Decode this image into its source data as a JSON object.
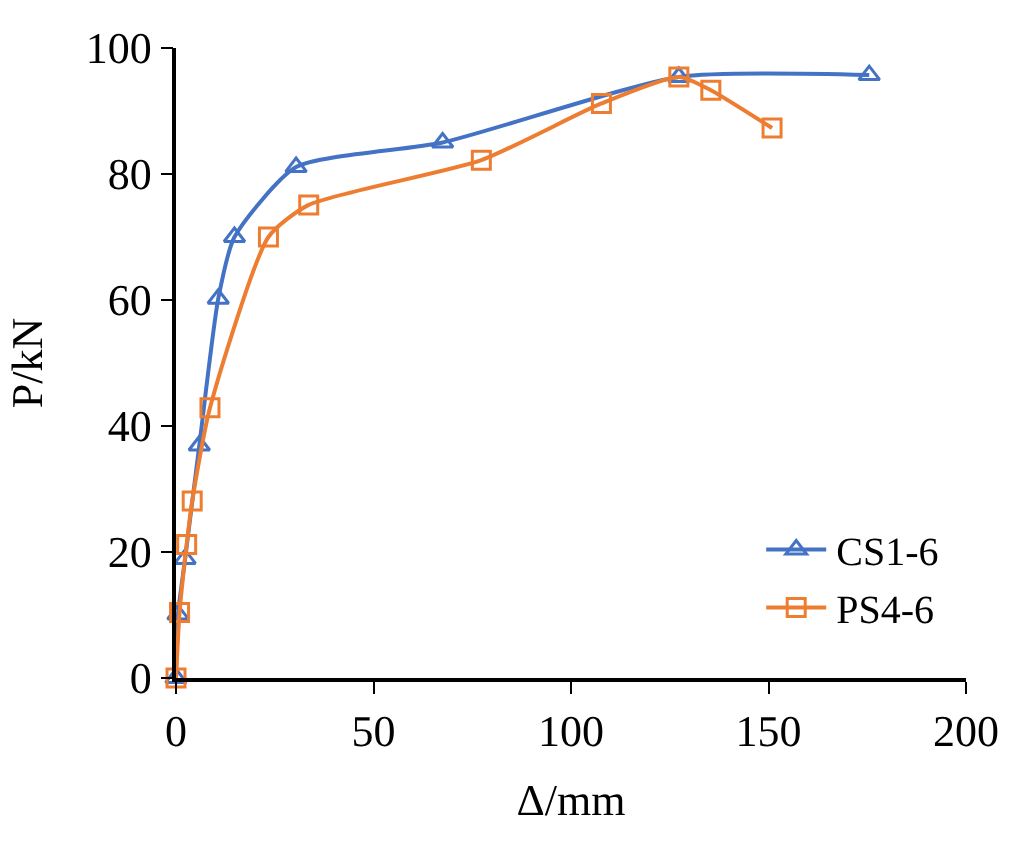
{
  "chart_data": {
    "type": "line",
    "xlabel": "Δ/mm",
    "ylabel": "P/kN",
    "xlim": [
      0,
      200
    ],
    "xticks": [
      0,
      50,
      100,
      150,
      200
    ],
    "ylim": [
      0,
      100
    ],
    "yticks": [
      0,
      20,
      40,
      60,
      80,
      100
    ],
    "legend": "bottom right",
    "line_style": "solid",
    "series": [
      {
        "name": "CS1-6",
        "color": "#4472c4",
        "marker": "triangle",
        "x": [
          0,
          0.5,
          2.3,
          5.9,
          10.7,
          14.8,
          30.4,
          67.5,
          127.3,
          175.5
        ],
        "values": [
          0,
          10.1,
          18.9,
          36.9,
          60.2,
          70,
          81.1,
          85,
          95.4,
          95.7
        ]
      },
      {
        "name": "PS4-6",
        "color": "#ed7d31",
        "marker": "square",
        "x": [
          0,
          0.9,
          2.7,
          4.1,
          8.6,
          23.4,
          33.6,
          77.3,
          107.7,
          127.3,
          135.4,
          150.9
        ],
        "values": [
          0,
          10.4,
          21.2,
          28.1,
          42.9,
          70,
          75.1,
          82.2,
          91.2,
          95.4,
          93.3,
          87.3
        ]
      }
    ]
  }
}
